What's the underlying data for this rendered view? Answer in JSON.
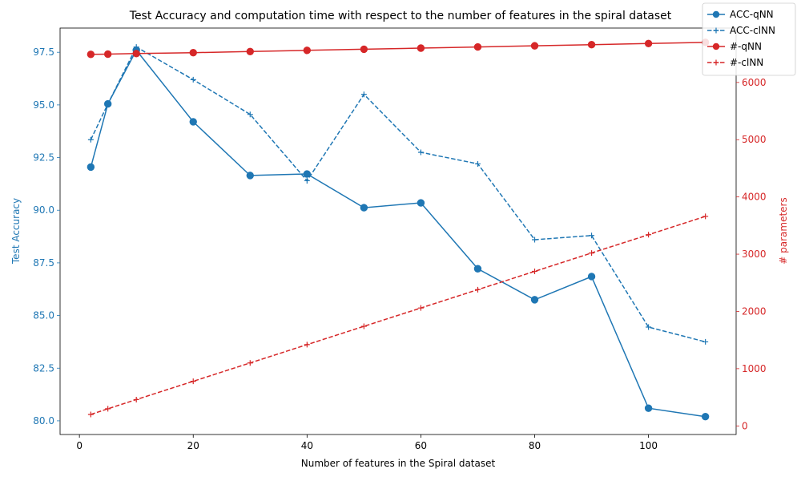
{
  "chart_data": {
    "type": "line",
    "title": "Test Accuracy and computation time with respect to the number of features in the spiral dataset",
    "xlabel": "Number of features in the Spiral dataset",
    "ylabel_left": "Test Accuracy",
    "ylabel_right": "# parameters",
    "x": [
      2,
      5,
      10,
      20,
      30,
      40,
      50,
      60,
      70,
      80,
      90,
      100,
      110
    ],
    "xlim": [
      -3.4,
      115.4
    ],
    "ylim_left": [
      79.35,
      98.65
    ],
    "ylim_right": [
      -150,
      6950
    ],
    "x_ticks": [
      0,
      20,
      40,
      60,
      80,
      100
    ],
    "y_left_ticks": [
      80.0,
      82.5,
      85.0,
      87.5,
      90.0,
      92.5,
      95.0,
      97.5
    ],
    "y_left_tick_labels": [
      "80.0",
      "82.5",
      "85.0",
      "87.5",
      "90.0",
      "92.5",
      "95.0",
      "97.5"
    ],
    "y_right_ticks": [
      0,
      1000,
      2000,
      3000,
      4000,
      5000,
      6000
    ],
    "grid": false,
    "legend_position": "top-right",
    "colors": {
      "blue": "#1f77b4",
      "red": "#d62728"
    },
    "series": [
      {
        "name": "ACC-qNN",
        "axis": "left",
        "color": "#1f77b4",
        "style": "solid",
        "marker": "circle",
        "values": [
          92.05,
          95.05,
          97.6,
          94.2,
          91.65,
          91.72,
          90.12,
          90.35,
          87.22,
          85.75,
          86.85,
          80.6,
          80.2
        ]
      },
      {
        "name": "ACC-clNN",
        "axis": "left",
        "color": "#1f77b4",
        "style": "dashed",
        "marker": "plus",
        "values": [
          93.35,
          95.05,
          97.75,
          96.2,
          94.55,
          91.4,
          95.5,
          92.75,
          92.2,
          88.6,
          88.8,
          84.45,
          83.75
        ]
      },
      {
        "name": "#-qNN",
        "axis": "right",
        "color": "#d62728",
        "style": "solid",
        "marker": "circle",
        "values": [
          6490,
          6495,
          6505,
          6520,
          6540,
          6560,
          6580,
          6600,
          6620,
          6640,
          6660,
          6680,
          6700
        ]
      },
      {
        "name": "#-clNN",
        "axis": "right",
        "color": "#d62728",
        "style": "dashed",
        "marker": "plus",
        "values": [
          200,
          300,
          460,
          780,
          1100,
          1420,
          1740,
          2060,
          2380,
          2700,
          3020,
          3340,
          3660
        ]
      }
    ]
  }
}
